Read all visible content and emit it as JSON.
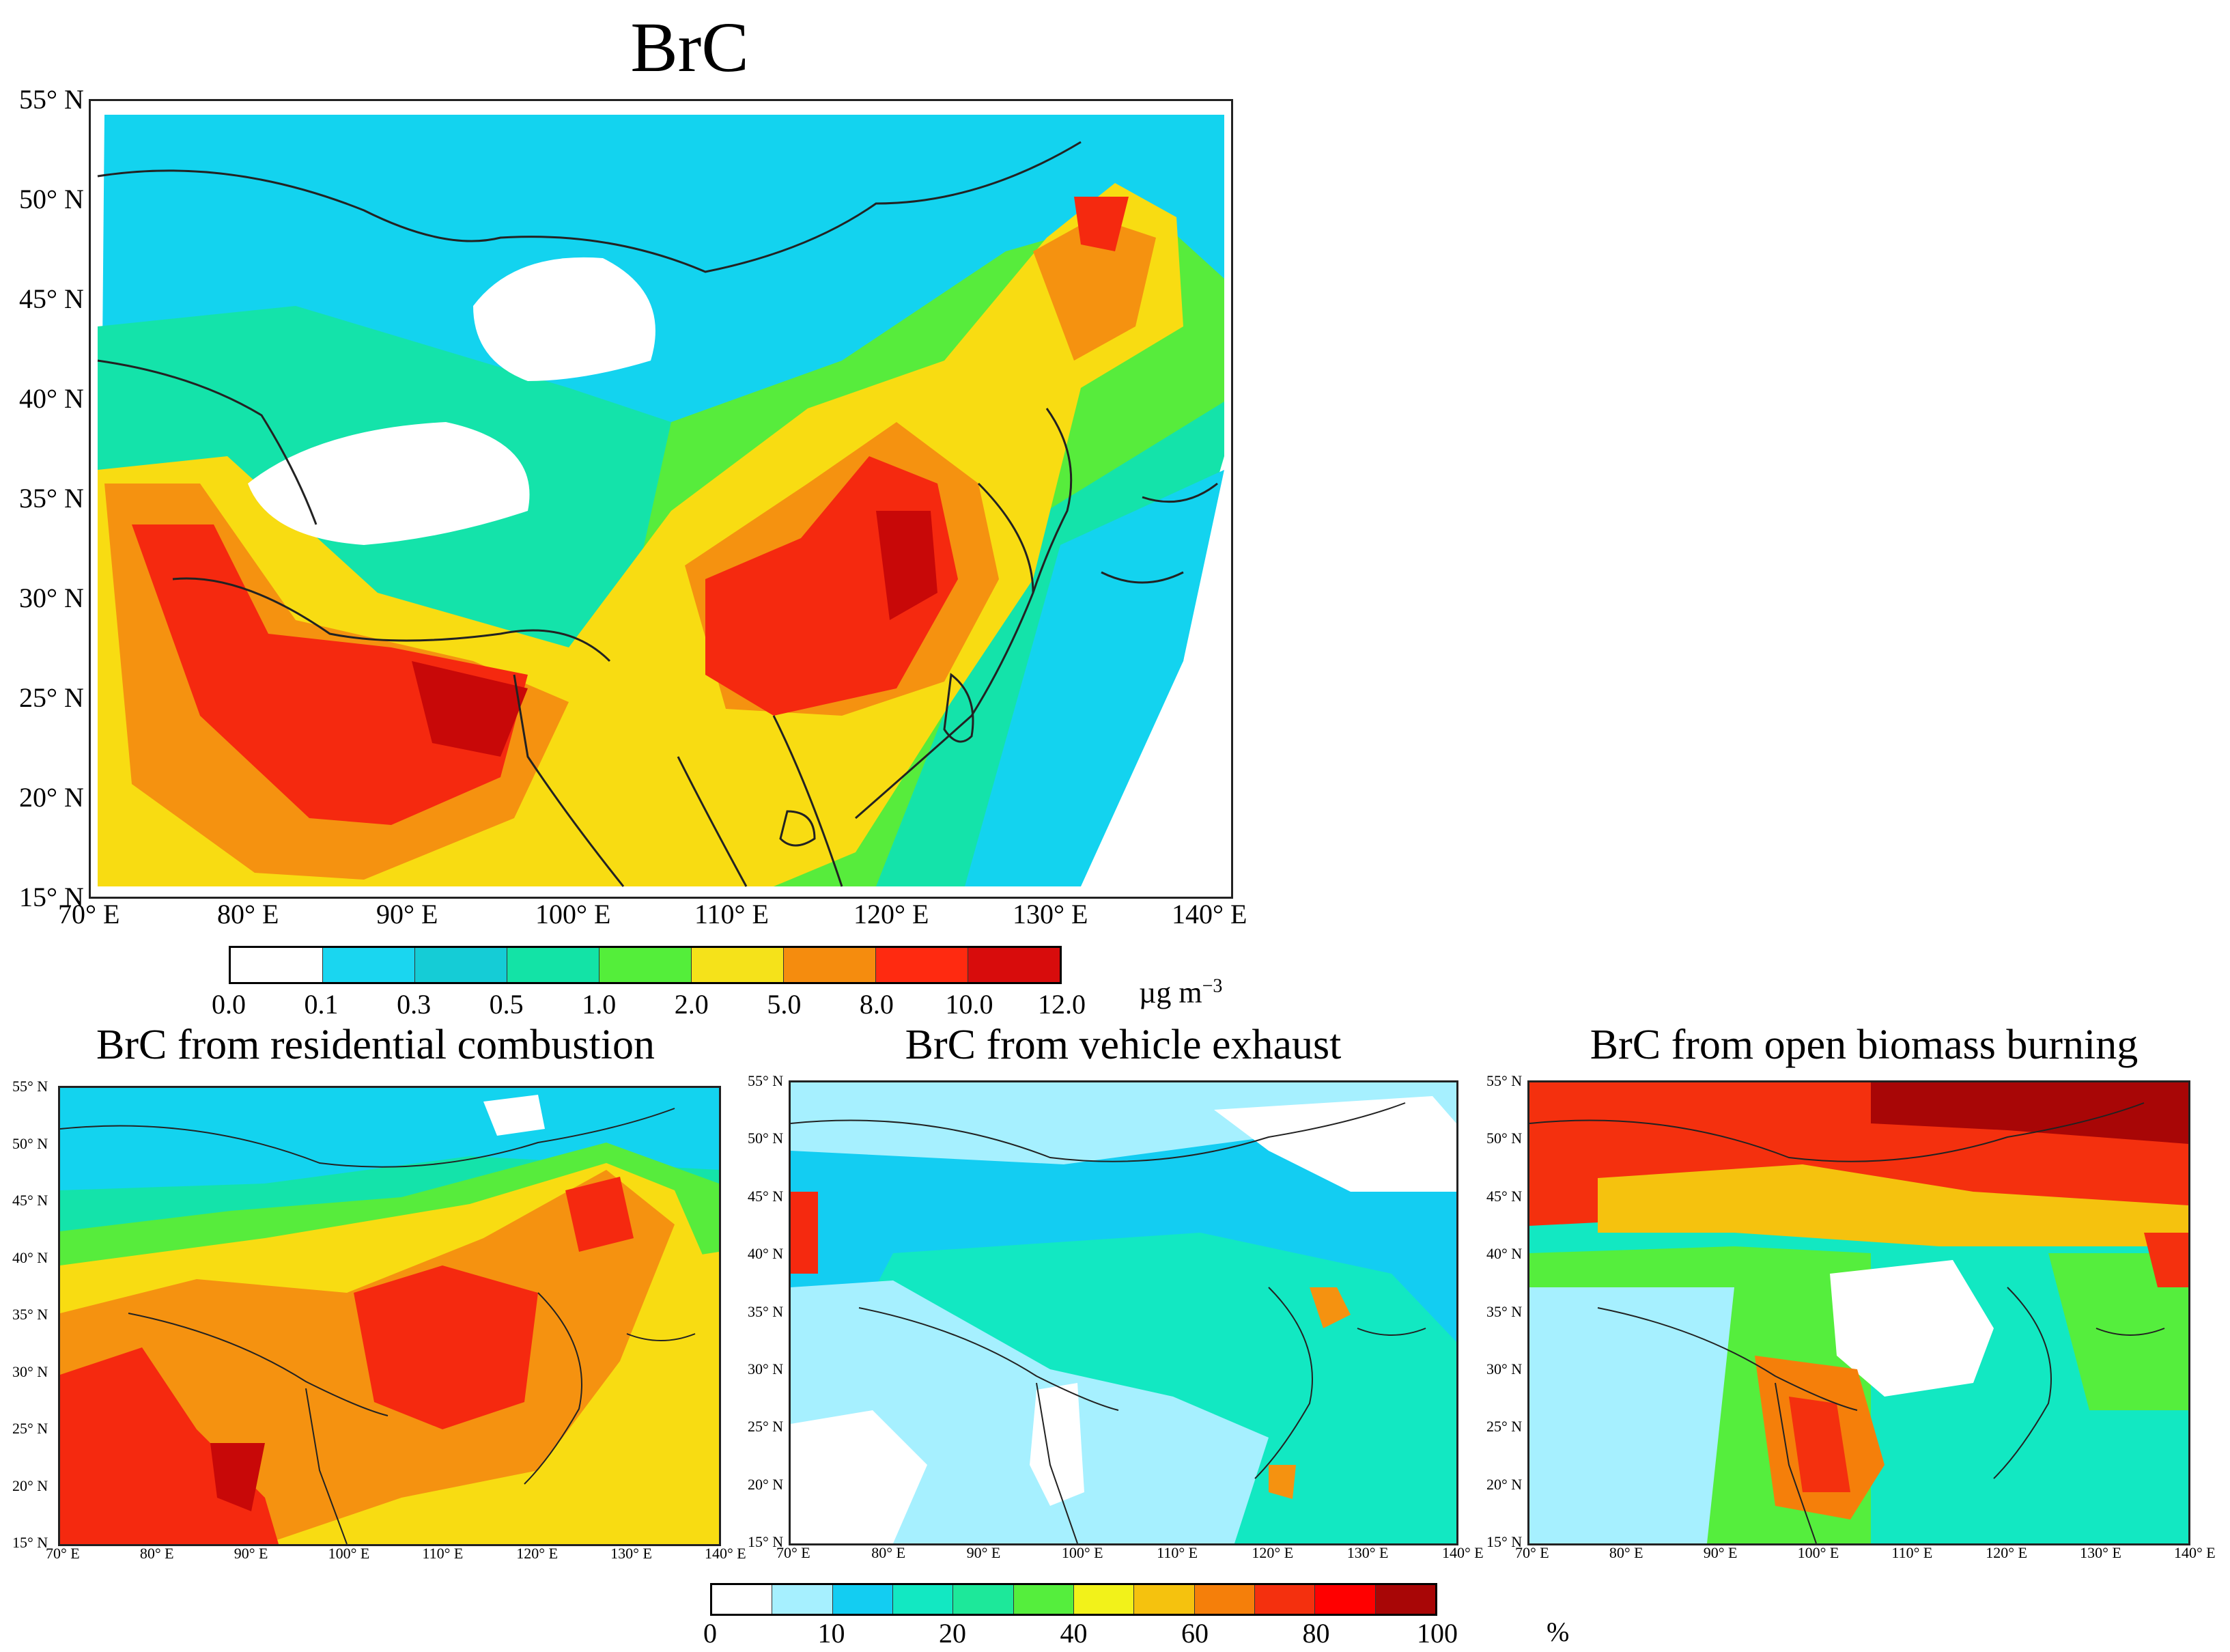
{
  "titles": {
    "main": "BrC",
    "residential": "BrC from residential combustion",
    "vehicle": "BrC from vehicle exhaust",
    "biomass": "BrC from open biomass burning"
  },
  "axes": {
    "lat_labels": [
      "55° N",
      "50° N",
      "45° N",
      "40° N",
      "35° N",
      "30° N",
      "25° N",
      "20° N",
      "15° N"
    ],
    "lon_labels": [
      "70° E",
      "80° E",
      "90° E",
      "100° E",
      "110° E",
      "120° E",
      "130° E",
      "140° E"
    ],
    "lat_values": [
      55,
      50,
      45,
      40,
      35,
      30,
      25,
      20,
      15
    ],
    "lon_values": [
      70,
      80,
      90,
      100,
      110,
      120,
      130,
      140
    ]
  },
  "colorbar_concentration": {
    "ticks": [
      "0.0",
      "0.1",
      "0.3",
      "0.5",
      "1.0",
      "2.0",
      "5.0",
      "8.0",
      "10.0",
      "12.0"
    ],
    "unit": "µg m",
    "unit_sup": "−3",
    "colors": [
      "#ffffff",
      "#1ad6f0",
      "#15ccd6",
      "#13e3a6",
      "#54ee3a",
      "#f5e21a",
      "#f58c0e",
      "#ff2a10",
      "#d80c0c"
    ]
  },
  "colorbar_percent": {
    "ticks": [
      "0",
      "10",
      "20",
      "40",
      "60",
      "80",
      "100"
    ],
    "unit": "%",
    "colors": [
      "#ffffff",
      "#a6f0ff",
      "#13cdf2",
      "#12e8c2",
      "#1de89a",
      "#55ee3d",
      "#f2f21a",
      "#f5c20e",
      "#f57f0a",
      "#f4300e",
      "#ff0000",
      "#a80606"
    ]
  },
  "palette": {
    "white": "#ffffff",
    "cyan": "#13d3ef",
    "lightcyan": "#a6f0ff",
    "teal": "#14e3aa",
    "green": "#57ec3c",
    "yellow": "#f8dc12",
    "orange": "#f59210",
    "red": "#f5290f",
    "darkred": "#c80808",
    "border": "#222222"
  }
}
